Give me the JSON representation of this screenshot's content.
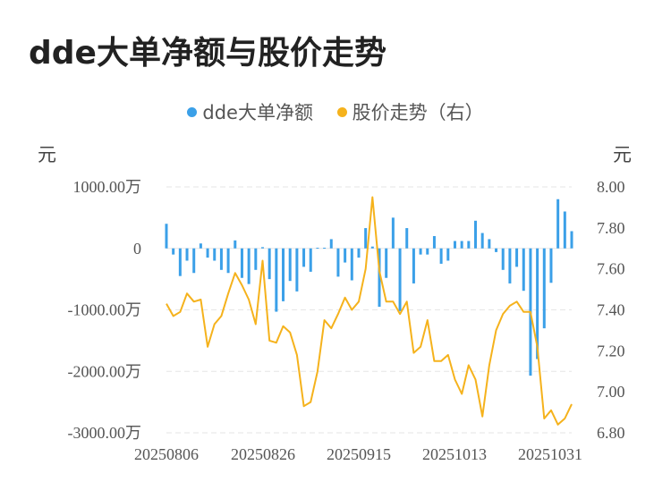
{
  "title": "dde大单净额与股价走势",
  "legend": {
    "bar_label": "dde大单净额",
    "line_label": "股价走势（右）"
  },
  "units": {
    "left": "元",
    "right": "元"
  },
  "colors": {
    "bar": "#3ba0e8",
    "line": "#f5b21c",
    "grid": "#e6e6e6"
  },
  "chart_data": {
    "type": "bar+line",
    "title": "dde大单净额与股价走势",
    "x_ticks": [
      "20250806",
      "20250826",
      "20250915",
      "20251013",
      "20251031"
    ],
    "left_axis": {
      "unit": "元",
      "ticks": [
        "1000.00万",
        "0",
        "-1000.00万",
        "-2000.00万",
        "-3000.00万"
      ],
      "range": [
        -3000,
        1000
      ]
    },
    "right_axis": {
      "unit": "元",
      "ticks": [
        "8.00",
        "7.80",
        "7.60",
        "7.40",
        "7.20",
        "7.00",
        "6.80"
      ],
      "range": [
        6.8,
        8.0
      ]
    },
    "series": [
      {
        "name": "dde大单净额",
        "type": "bar",
        "axis": "left",
        "values": [
          400,
          -100,
          -450,
          -200,
          -400,
          80,
          -150,
          -200,
          -350,
          -400,
          130,
          -480,
          -580,
          -350,
          20,
          -500,
          -1030,
          -860,
          -530,
          -700,
          -300,
          -380,
          10,
          10,
          150,
          -460,
          -230,
          -520,
          -150,
          330,
          30,
          -950,
          -480,
          500,
          -1020,
          330,
          -570,
          -100,
          -100,
          200,
          -250,
          -200,
          120,
          120,
          120,
          450,
          250,
          150,
          -60,
          -350,
          -570,
          -300,
          -690,
          -2070,
          -1800,
          -1300,
          -560,
          800,
          600,
          280
        ]
      },
      {
        "name": "股价走势（右）",
        "type": "line",
        "axis": "right",
        "values": [
          7.43,
          7.37,
          7.39,
          7.48,
          7.44,
          7.45,
          7.22,
          7.33,
          7.37,
          7.48,
          7.58,
          7.52,
          7.45,
          7.33,
          7.64,
          7.25,
          7.24,
          7.32,
          7.29,
          7.18,
          6.93,
          6.95,
          7.1,
          7.35,
          7.31,
          7.38,
          7.46,
          7.4,
          7.44,
          7.6,
          7.95,
          7.59,
          7.44,
          7.44,
          7.38,
          7.44,
          7.19,
          7.22,
          7.35,
          7.15,
          7.15,
          7.18,
          7.06,
          6.99,
          7.13,
          7.06,
          6.88,
          7.13,
          7.3,
          7.38,
          7.42,
          7.44,
          7.39,
          7.39,
          7.22,
          6.87,
          6.91,
          6.84,
          6.87,
          6.94
        ]
      }
    ],
    "grid": true,
    "legend_position": "top-center"
  }
}
